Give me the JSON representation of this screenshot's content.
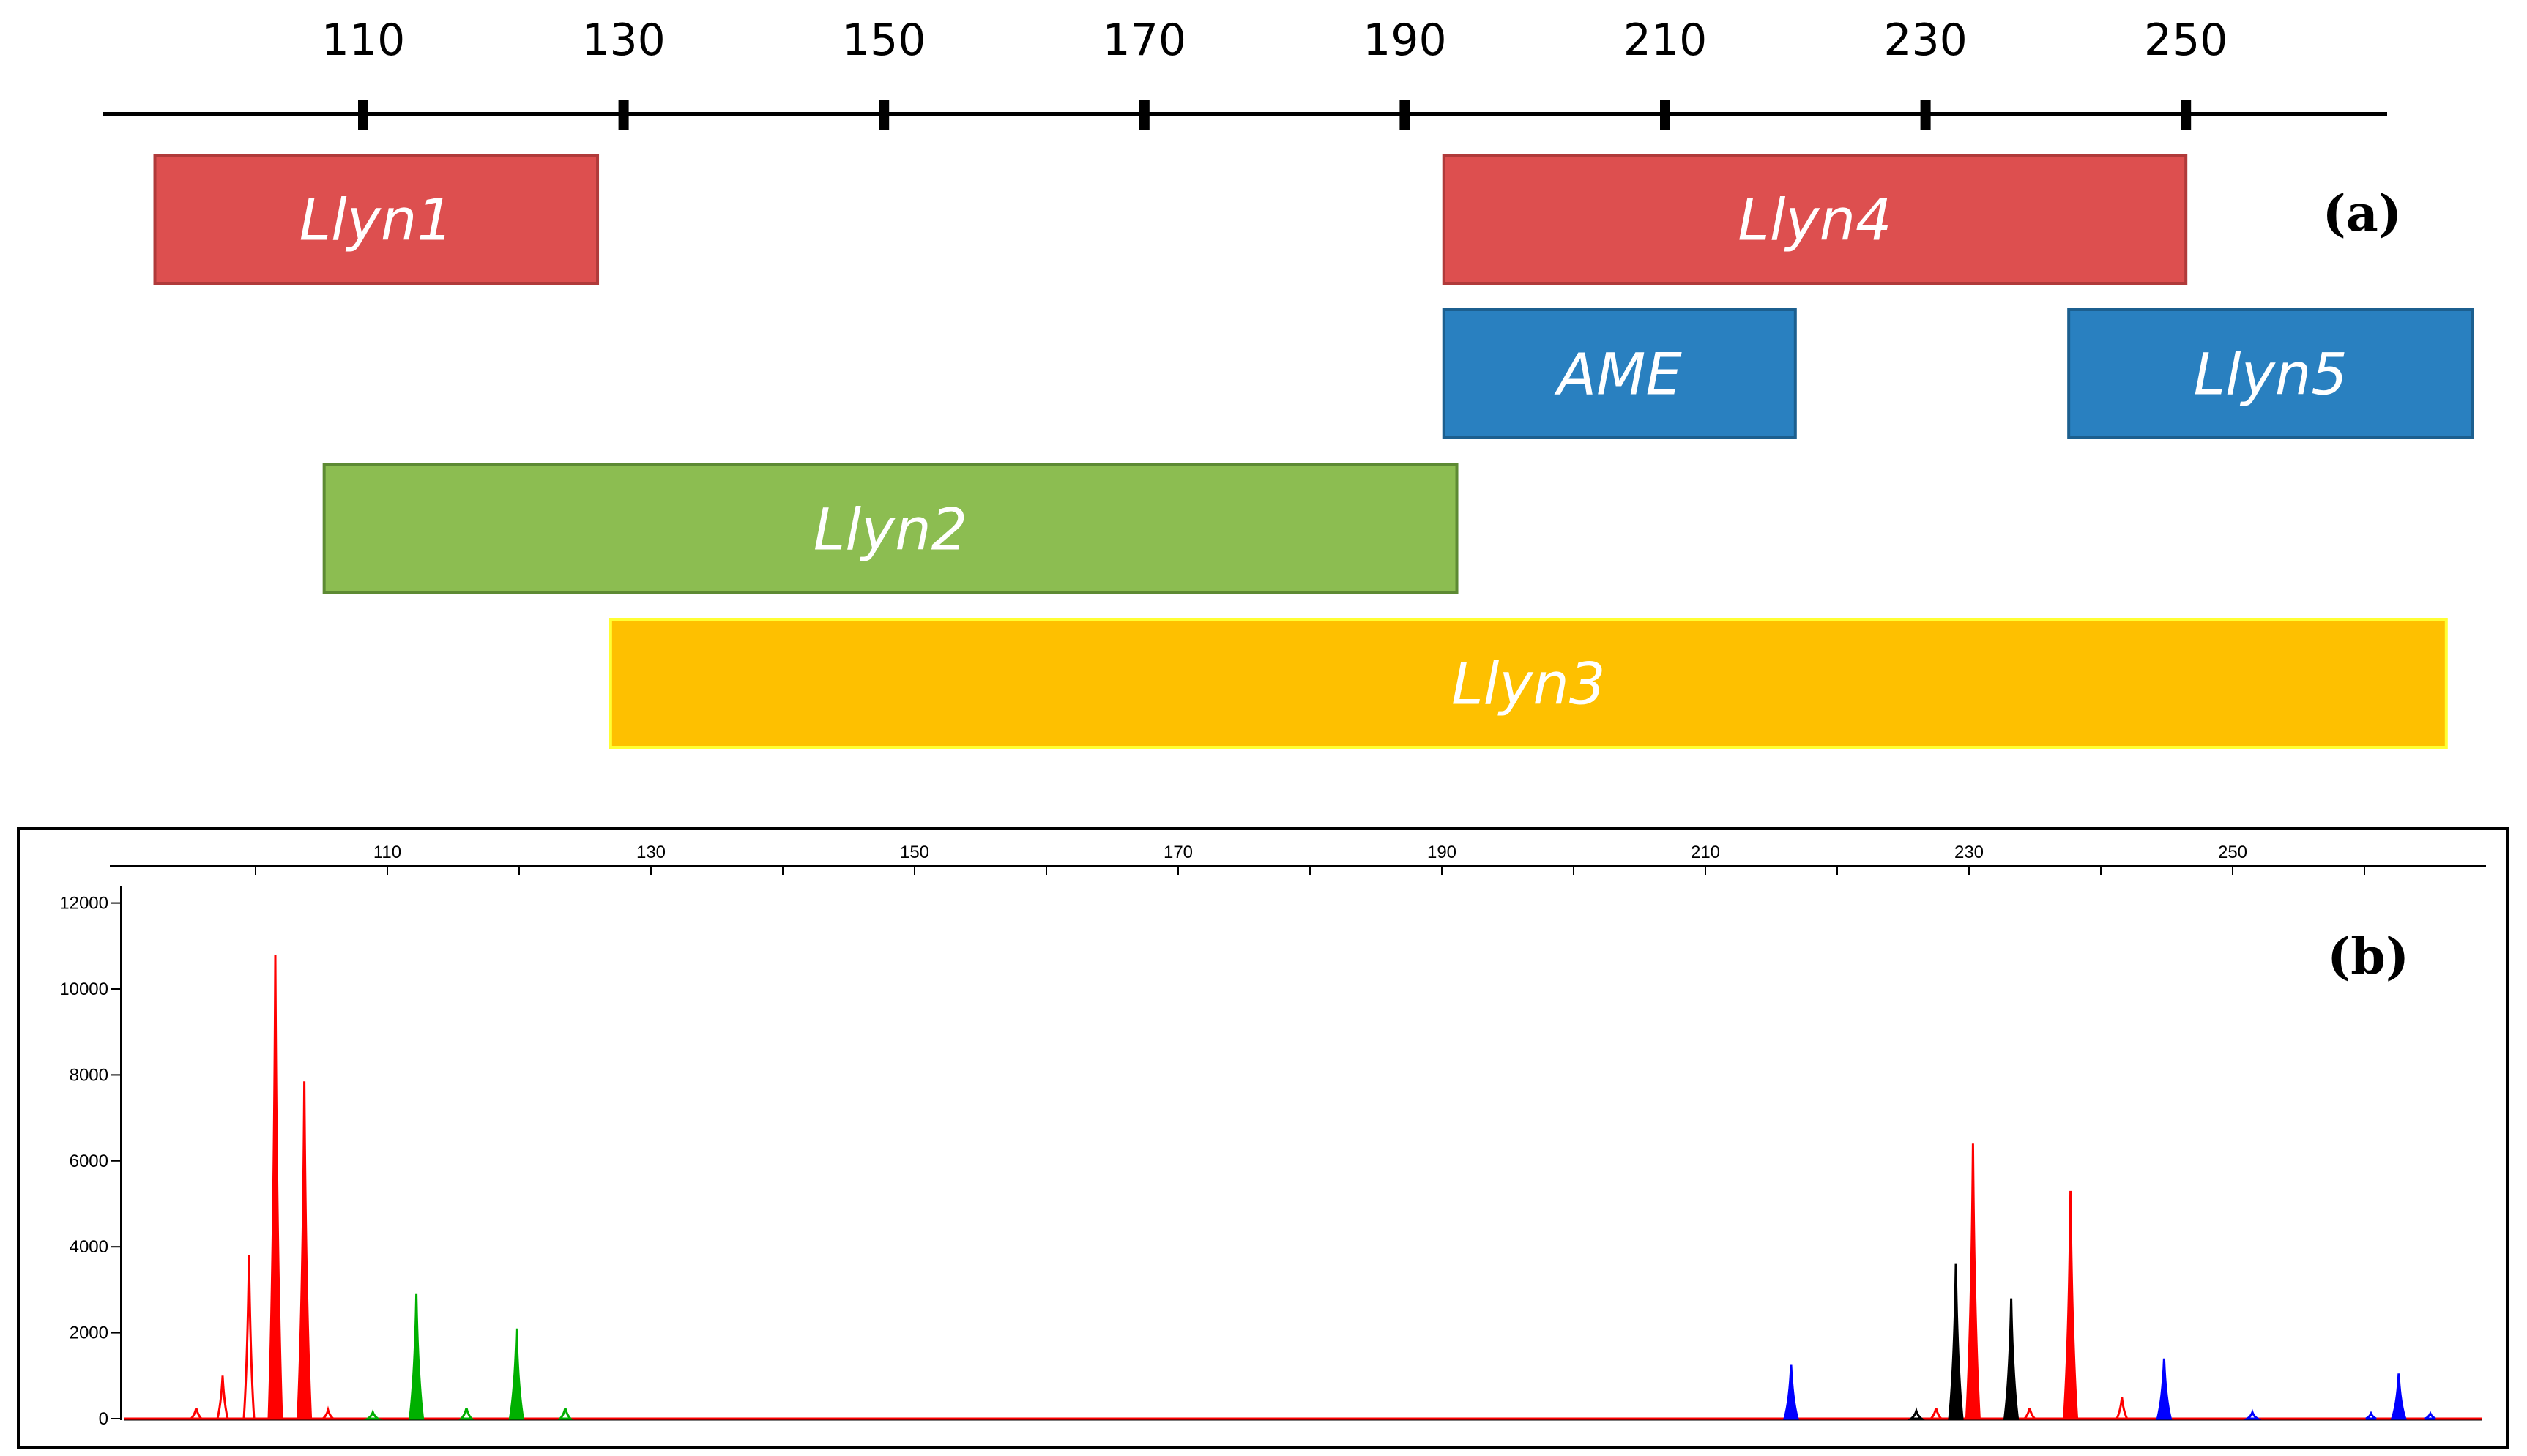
{
  "chart_data": [
    {
      "type": "bar",
      "panel_label": "(a)",
      "xticks": [
        110,
        130,
        150,
        170,
        190,
        210,
        230,
        250
      ],
      "colors": {
        "red": "#dd4f4f",
        "blue": "#2980c0",
        "green": "#8cbd51",
        "yellow": "#fec000",
        "axis": "#000000"
      },
      "ranges": [
        {
          "label": "Llyn1",
          "start": 94,
          "end": 128,
          "row": 0,
          "color": "red"
        },
        {
          "label": "Llyn4",
          "start": 193,
          "end": 250,
          "row": 0,
          "color": "red"
        },
        {
          "label": "AME",
          "start": 193,
          "end": 220,
          "row": 1,
          "color": "blue"
        },
        {
          "label": "Llyn5",
          "start": 241,
          "end": 272,
          "row": 1,
          "color": "blue"
        },
        {
          "label": "Llyn2",
          "start": 107,
          "end": 194,
          "row": 2,
          "color": "green"
        },
        {
          "label": "Llyn3",
          "start": 129,
          "end": 270,
          "row": 3,
          "color": "yellow"
        }
      ]
    },
    {
      "type": "line",
      "panel_label": "(b)",
      "xticks": [
        110,
        130,
        150,
        170,
        190,
        210,
        230,
        250
      ],
      "yticks": [
        0,
        2000,
        4000,
        6000,
        8000,
        10000,
        12000
      ],
      "ylim": [
        0,
        12500
      ],
      "xlim": [
        91,
        266
      ],
      "colors": {
        "red": "#ff0000",
        "green": "#00b000",
        "blue": "#0000ff",
        "black": "#000000"
      },
      "peaks": [
        {
          "series": "red",
          "x": 95.5,
          "y": 250,
          "filled": false
        },
        {
          "series": "red",
          "x": 97.5,
          "y": 1000,
          "filled": false
        },
        {
          "series": "red",
          "x": 99.5,
          "y": 3800,
          "filled": false
        },
        {
          "series": "red",
          "x": 101.5,
          "y": 10800,
          "filled": true
        },
        {
          "series": "red",
          "x": 103.7,
          "y": 7850,
          "filled": true
        },
        {
          "series": "red",
          "x": 105.5,
          "y": 200,
          "filled": false
        },
        {
          "series": "green",
          "x": 108.9,
          "y": 150,
          "filled": false
        },
        {
          "series": "green",
          "x": 112.2,
          "y": 2900,
          "filled": true
        },
        {
          "series": "green",
          "x": 116.0,
          "y": 250,
          "filled": false
        },
        {
          "series": "green",
          "x": 119.8,
          "y": 2100,
          "filled": true
        },
        {
          "series": "green",
          "x": 123.5,
          "y": 250,
          "filled": false
        },
        {
          "series": "blue",
          "x": 216.5,
          "y": 1250,
          "filled": true
        },
        {
          "series": "black",
          "x": 226.0,
          "y": 180,
          "filled": false
        },
        {
          "series": "red",
          "x": 227.5,
          "y": 250,
          "filled": false
        },
        {
          "series": "black",
          "x": 229.0,
          "y": 3600,
          "filled": true
        },
        {
          "series": "red",
          "x": 230.3,
          "y": 6400,
          "filled": true
        },
        {
          "series": "black",
          "x": 233.2,
          "y": 2800,
          "filled": true
        },
        {
          "series": "red",
          "x": 234.6,
          "y": 250,
          "filled": false
        },
        {
          "series": "red",
          "x": 237.7,
          "y": 5300,
          "filled": true
        },
        {
          "series": "red",
          "x": 241.6,
          "y": 500,
          "filled": false
        },
        {
          "series": "blue",
          "x": 244.8,
          "y": 1400,
          "filled": true
        },
        {
          "series": "blue",
          "x": 251.5,
          "y": 150,
          "filled": false
        },
        {
          "series": "blue",
          "x": 260.5,
          "y": 120,
          "filled": false
        },
        {
          "series": "blue",
          "x": 262.6,
          "y": 1050,
          "filled": true
        },
        {
          "series": "blue",
          "x": 265.0,
          "y": 120,
          "filled": false
        }
      ]
    }
  ]
}
